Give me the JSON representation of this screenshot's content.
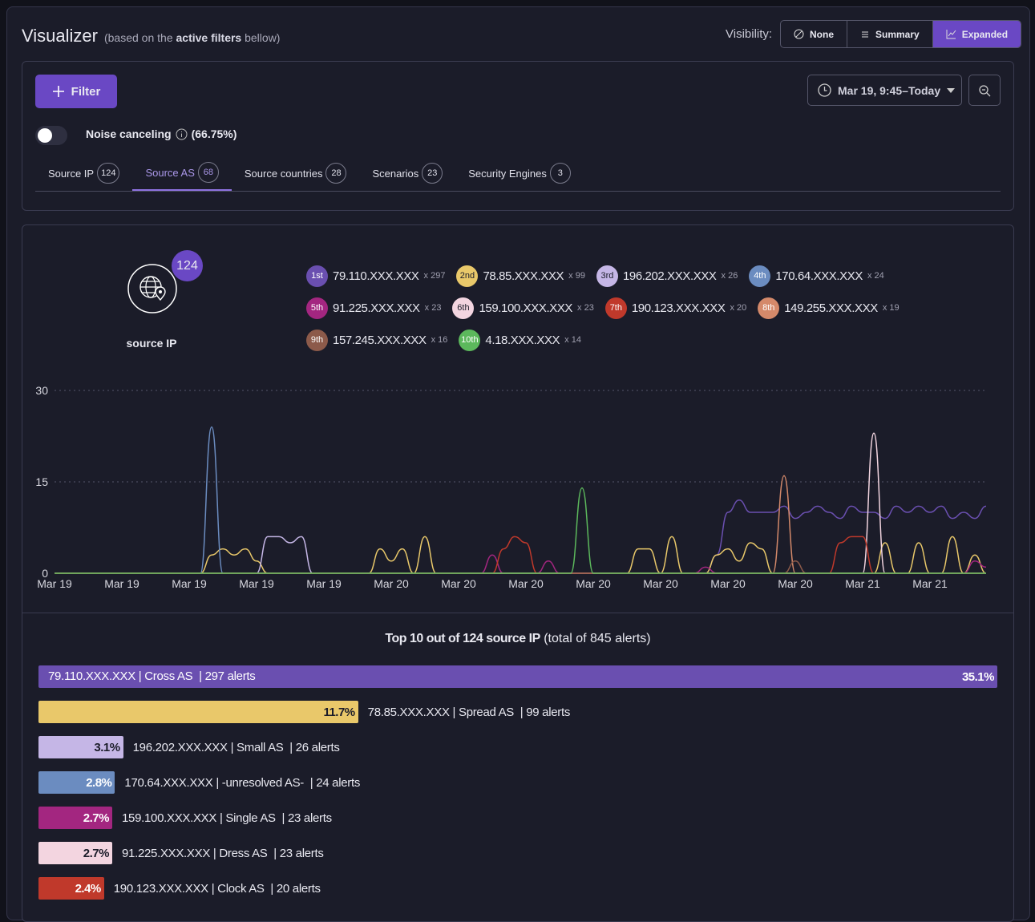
{
  "header": {
    "title": "Visualizer",
    "note_before": "(based on the",
    "note_bold": "active filters",
    "note_after": "bellow)",
    "visibility_label": "Visibility:",
    "visibility_options": [
      "None",
      "Summary",
      "Expanded"
    ]
  },
  "filters": {
    "add_button": "Filter",
    "time_range": "Mar 19, 9:45–Today",
    "noise_label": "Noise canceling",
    "noise_value": "(66.75%)"
  },
  "tabs": [
    {
      "label": "Source IP",
      "count": 124
    },
    {
      "label": "Source AS",
      "count": 68
    },
    {
      "label": "Source countries",
      "count": 28
    },
    {
      "label": "Scenarios",
      "count": 23
    },
    {
      "label": "Security Engines",
      "count": 3
    }
  ],
  "summary": {
    "count": 124,
    "label": "source IP"
  },
  "chart_data": [
    {
      "type": "line",
      "x": [
        0,
        1,
        2,
        3,
        4,
        5,
        6,
        7,
        8,
        9,
        10,
        11,
        12,
        13,
        14,
        15,
        16,
        17,
        18,
        19,
        20,
        21,
        22,
        23,
        24,
        25,
        26,
        27,
        28,
        29,
        30,
        31,
        32,
        33,
        34,
        35,
        36,
        37,
        38,
        39,
        40,
        41,
        42,
        43,
        44,
        45,
        46,
        47,
        48,
        49,
        50,
        51,
        52,
        53,
        54,
        55,
        56,
        57,
        58,
        59,
        60,
        61,
        62,
        63,
        64,
        65,
        66,
        67,
        68,
        69,
        70,
        71,
        72,
        73,
        74,
        75,
        76,
        77,
        78,
        79,
        80,
        81,
        82,
        83
      ],
      "xlim": [
        0,
        83
      ],
      "xticks": [
        {
          "value": 0,
          "label": "Mar 19"
        },
        {
          "value": 6,
          "label": "Mar 19"
        },
        {
          "value": 12,
          "label": "Mar 19"
        },
        {
          "value": 18,
          "label": "Mar 19"
        },
        {
          "value": 24,
          "label": "Mar 19"
        },
        {
          "value": 30,
          "label": "Mar 20"
        },
        {
          "value": 36,
          "label": "Mar 20"
        },
        {
          "value": 42,
          "label": "Mar 20"
        },
        {
          "value": 48,
          "label": "Mar 20"
        },
        {
          "value": 54,
          "label": "Mar 20"
        },
        {
          "value": 60,
          "label": "Mar 20"
        },
        {
          "value": 66,
          "label": "Mar 20"
        },
        {
          "value": 72,
          "label": "Mar 21"
        },
        {
          "value": 78,
          "label": "Mar 21"
        }
      ],
      "ylim": [
        0,
        30
      ],
      "yticks": [
        0,
        15,
        30
      ],
      "grid": true,
      "series": [
        {
          "name": "79.110.XXX.XXX",
          "rank": "1st",
          "total": "x 297",
          "color": "#6a4fb0",
          "values": [
            0,
            0,
            0,
            0,
            0,
            0,
            0,
            0,
            0,
            0,
            0,
            0,
            0,
            0,
            0,
            0,
            0,
            0,
            0,
            0,
            0,
            0,
            0,
            0,
            0,
            0,
            0,
            0,
            0,
            0,
            0,
            0,
            0,
            0,
            0,
            0,
            0,
            0,
            0,
            0,
            0,
            0,
            0,
            0,
            0,
            0,
            0,
            0,
            0,
            0,
            0,
            0,
            0,
            0,
            0,
            0,
            0,
            0,
            0,
            3,
            10,
            12,
            10,
            10,
            10,
            11,
            9,
            10,
            11,
            10,
            9,
            11,
            10,
            10,
            9,
            11,
            10,
            11,
            10,
            11,
            9,
            10,
            9,
            11
          ]
        },
        {
          "name": "78.85.XXX.XXX",
          "rank": "2nd",
          "total": "x 99",
          "color": "#e9c86a",
          "values": [
            0,
            0,
            0,
            0,
            0,
            0,
            0,
            0,
            0,
            0,
            0,
            0,
            0,
            0,
            3,
            4,
            3,
            4,
            2,
            0,
            0,
            0,
            0,
            0,
            0,
            0,
            0,
            0,
            0,
            4,
            2,
            4,
            0,
            6,
            0,
            0,
            0,
            0,
            0,
            0,
            0,
            0,
            0,
            0,
            0,
            0,
            0,
            0,
            0,
            0,
            0,
            0,
            4,
            4,
            0,
            6,
            0,
            0,
            0,
            3,
            4,
            2,
            5,
            4,
            0,
            0,
            0,
            0,
            0,
            0,
            0,
            0,
            0,
            0,
            5,
            0,
            0,
            5,
            0,
            0,
            6,
            0,
            3,
            0
          ]
        },
        {
          "name": "196.202.XXX.XXX",
          "rank": "3rd",
          "total": "x 26",
          "color": "#c5b6e6",
          "values": [
            0,
            0,
            0,
            0,
            0,
            0,
            0,
            0,
            0,
            0,
            0,
            0,
            0,
            0,
            0,
            0,
            0,
            0,
            0,
            6,
            6,
            5,
            6,
            0,
            0,
            0,
            0,
            0,
            0,
            0,
            0,
            0,
            0,
            0,
            0,
            0,
            0,
            0,
            0,
            0,
            0,
            0,
            0,
            0,
            0,
            0,
            0,
            0,
            0,
            0,
            0,
            0,
            0,
            0,
            0,
            0,
            0,
            0,
            0,
            0,
            0,
            0,
            0,
            0,
            0,
            0,
            0,
            0,
            0,
            0,
            0,
            0,
            0,
            0,
            0,
            0,
            0,
            0,
            0,
            0,
            0,
            0,
            0,
            0
          ]
        },
        {
          "name": "170.64.XXX.XXX",
          "rank": "4th",
          "total": "x 24",
          "color": "#6b8cc0",
          "values": [
            0,
            0,
            0,
            0,
            0,
            0,
            0,
            0,
            0,
            0,
            0,
            0,
            0,
            0,
            24,
            0,
            0,
            0,
            0,
            0,
            0,
            0,
            0,
            0,
            0,
            0,
            0,
            0,
            0,
            0,
            0,
            0,
            0,
            0,
            0,
            0,
            0,
            0,
            0,
            0,
            0,
            0,
            0,
            0,
            0,
            0,
            0,
            0,
            0,
            0,
            0,
            0,
            0,
            0,
            0,
            0,
            0,
            0,
            0,
            0,
            0,
            0,
            0,
            0,
            0,
            0,
            0,
            0,
            0,
            0,
            0,
            0,
            0,
            0,
            0,
            0,
            0,
            0,
            0,
            0,
            0,
            0,
            0,
            0
          ]
        },
        {
          "name": "91.225.XXX.XXX",
          "rank": "5th",
          "total": "x 23",
          "color": "#a32680",
          "values": [
            0,
            0,
            0,
            0,
            0,
            0,
            0,
            0,
            0,
            0,
            0,
            0,
            0,
            0,
            0,
            0,
            0,
            0,
            0,
            0,
            0,
            0,
            0,
            0,
            0,
            0,
            0,
            0,
            0,
            0,
            0,
            0,
            0,
            0,
            0,
            0,
            0,
            0,
            0,
            3,
            0,
            0,
            0,
            0,
            2,
            0,
            0,
            0,
            0,
            0,
            0,
            0,
            0,
            0,
            0,
            0,
            0,
            0,
            1,
            0,
            0,
            0,
            0,
            0,
            0,
            0,
            0,
            0,
            0,
            0,
            0,
            0,
            0,
            0,
            0,
            0,
            0,
            0,
            0,
            0,
            0,
            0,
            2,
            1
          ]
        },
        {
          "name": "159.100.XXX.XXX",
          "rank": "6th",
          "total": "x 23",
          "color": "#f3d5e0",
          "values": [
            0,
            0,
            0,
            0,
            0,
            0,
            0,
            0,
            0,
            0,
            0,
            0,
            0,
            0,
            0,
            0,
            0,
            0,
            0,
            0,
            0,
            0,
            0,
            0,
            0,
            0,
            0,
            0,
            0,
            0,
            0,
            0,
            0,
            0,
            0,
            0,
            0,
            0,
            0,
            0,
            0,
            0,
            0,
            0,
            0,
            0,
            0,
            0,
            0,
            0,
            0,
            0,
            0,
            0,
            0,
            0,
            0,
            0,
            0,
            0,
            0,
            0,
            0,
            0,
            0,
            0,
            0,
            0,
            0,
            0,
            0,
            0,
            0,
            23,
            0,
            0,
            0,
            0,
            0,
            0,
            0,
            0,
            0,
            0
          ]
        },
        {
          "name": "190.123.XXX.XXX",
          "rank": "7th",
          "total": "x 20",
          "color": "#c0392b",
          "values": [
            0,
            0,
            0,
            0,
            0,
            0,
            0,
            0,
            0,
            0,
            0,
            0,
            0,
            0,
            0,
            0,
            0,
            0,
            0,
            0,
            0,
            0,
            0,
            0,
            0,
            0,
            0,
            0,
            0,
            0,
            0,
            0,
            0,
            0,
            0,
            0,
            0,
            0,
            0,
            0,
            4,
            6,
            5,
            0,
            0,
            0,
            0,
            0,
            0,
            0,
            0,
            0,
            0,
            0,
            0,
            0,
            0,
            0,
            0,
            0,
            0,
            0,
            0,
            0,
            0,
            0,
            0,
            0,
            0,
            0,
            5,
            6,
            6,
            0,
            0,
            0,
            0,
            0,
            0,
            0,
            0,
            0,
            0,
            0
          ]
        },
        {
          "name": "149.255.XXX.XXX",
          "rank": "8th",
          "total": "x 19",
          "color": "#d4896a",
          "values": [
            0,
            0,
            0,
            0,
            0,
            0,
            0,
            0,
            0,
            0,
            0,
            0,
            0,
            0,
            0,
            0,
            0,
            0,
            0,
            0,
            0,
            0,
            0,
            0,
            0,
            0,
            0,
            0,
            0,
            0,
            0,
            0,
            0,
            0,
            0,
            0,
            0,
            0,
            0,
            0,
            0,
            0,
            0,
            0,
            0,
            0,
            0,
            0,
            0,
            0,
            0,
            0,
            0,
            0,
            0,
            0,
            0,
            0,
            0,
            0,
            0,
            0,
            0,
            0,
            0,
            16,
            0,
            0,
            0,
            0,
            0,
            0,
            0,
            0,
            0,
            0,
            0,
            0,
            0,
            0,
            0,
            0,
            0,
            0
          ]
        },
        {
          "name": "157.245.XXX.XXX",
          "rank": "9th",
          "total": "x 16",
          "color": "#8c5a4a",
          "values": [
            0,
            0,
            0,
            0,
            0,
            0,
            0,
            0,
            0,
            0,
            0,
            0,
            0,
            0,
            0,
            0,
            0,
            0,
            0,
            0,
            0,
            0,
            0,
            0,
            0,
            0,
            0,
            0,
            0,
            0,
            0,
            0,
            0,
            0,
            0,
            0,
            0,
            0,
            0,
            0,
            0,
            0,
            0,
            0,
            0,
            0,
            0,
            0,
            0,
            0,
            0,
            0,
            0,
            0,
            0,
            0,
            0,
            0,
            0,
            0,
            0,
            0,
            0,
            0,
            0,
            0,
            2,
            0,
            0,
            0,
            0,
            0,
            0,
            0,
            0,
            0,
            0,
            0,
            0,
            0,
            0,
            0,
            0,
            0
          ]
        },
        {
          "name": "4.18.XXX.XXX",
          "rank": "10th",
          "total": "x 14",
          "color": "#5cb85c",
          "values": [
            0,
            0,
            0,
            0,
            0,
            0,
            0,
            0,
            0,
            0,
            0,
            0,
            0,
            0,
            0,
            0,
            0,
            0,
            0,
            0,
            0,
            0,
            0,
            0,
            0,
            0,
            0,
            0,
            0,
            0,
            0,
            0,
            0,
            0,
            0,
            0,
            0,
            0,
            0,
            0,
            0,
            0,
            0,
            0,
            0,
            0,
            0,
            14,
            0,
            0,
            0,
            0,
            0,
            0,
            0,
            0,
            0,
            0,
            0,
            0,
            0,
            0,
            0,
            0,
            0,
            0,
            0,
            0,
            0,
            0,
            0,
            0,
            0,
            0,
            0,
            0,
            0,
            0,
            0,
            0,
            0,
            0,
            0,
            0
          ]
        }
      ]
    },
    {
      "type": "barh",
      "title": "Top 10 out of 124 source IP",
      "subtitle": "(total of 845 alerts)",
      "categories": [
        "79.110.XXX.XXX | Cross AS  | 297 alerts",
        "78.85.XXX.XXX | Spread AS  | 99 alerts",
        "196.202.XXX.XXX | Small AS  | 26 alerts",
        "170.64.XXX.XXX | -unresolved AS-  | 24 alerts",
        "159.100.XXX.XXX | Single AS  | 23 alerts",
        "91.225.XXX.XXX | Dress AS  | 23 alerts",
        "190.123.XXX.XXX | Clock AS  | 20 alerts"
      ],
      "values": [
        35.1,
        11.7,
        3.1,
        2.8,
        2.7,
        2.7,
        2.4
      ],
      "value_labels": [
        "35.1%",
        "11.7%",
        "3.1%",
        "2.8%",
        "2.7%",
        "2.7%",
        "2.4%"
      ],
      "colors": [
        "#6a4fb0",
        "#e9c86a",
        "#c5b6e6",
        "#6b8cc0",
        "#a32680",
        "#f3d5e0",
        "#c0392b"
      ]
    }
  ]
}
